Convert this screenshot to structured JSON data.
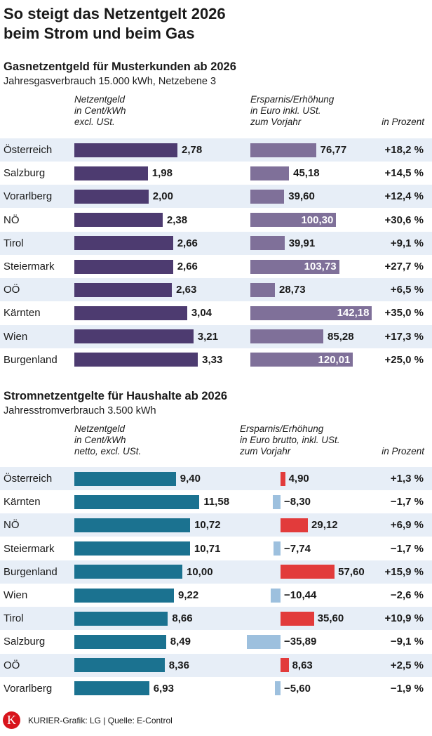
{
  "title": "So steigt das Netzentgelt 2026\nbeim Strom und beim Gas",
  "colors": {
    "gas_main": "#4d3b70",
    "gas_change": "#7f7099",
    "strom_main": "#1b7290",
    "increase": "#e23b3b",
    "decrease": "#9dc0de",
    "band": "#e7eef7"
  },
  "chart_data": [
    {
      "type": "bar",
      "title": "Gasnetzentgeld für Musterkunden ab 2026",
      "subtitle": "Jahresgasverbrauch 15.000 kWh, Netzebene 3",
      "headers": {
        "main": "Netzentgeld\nin Cent/kWh\nexcl. USt.",
        "change": "Ersparnis/Erhöhung\nin Euro inkl. USt.\nzum Vorjahr",
        "percent": "in Prozent"
      },
      "categories": [
        "Österreich",
        "Salzburg",
        "Vorarlberg",
        "NÖ",
        "Tirol",
        "Steiermark",
        "OÖ",
        "Kärnten",
        "Wien",
        "Burgenland"
      ],
      "values": [
        2.78,
        1.98,
        2.0,
        2.38,
        2.66,
        2.66,
        2.63,
        3.04,
        3.21,
        3.33
      ],
      "value_labels": [
        "2,78",
        "1,98",
        "2,00",
        "2,38",
        "2,66",
        "2,66",
        "2,63",
        "3,04",
        "3,21",
        "3,33"
      ],
      "change": [
        76.77,
        45.18,
        39.6,
        100.3,
        39.91,
        103.73,
        28.73,
        142.18,
        85.28,
        120.01
      ],
      "change_labels": [
        "76,77",
        "45,18",
        "39,60",
        "100,30",
        "39,91",
        "103,73",
        "28,73",
        "142,18",
        "85,28",
        "120,01"
      ],
      "percent": [
        "+18,2 %",
        "+14,5 %",
        "+12,4 %",
        "+30,6 %",
        "+9,1 %",
        "+27,7 %",
        "+6,5 %",
        "+35,0 %",
        "+17,3 %",
        "+25,0 %"
      ]
    },
    {
      "type": "bar",
      "title": "Stromnetzentgelte für Haushalte ab 2026",
      "subtitle": "Jahresstromverbrauch 3.500 kWh",
      "headers": {
        "main": "Netzentgeld\nin Cent/kWh\nnetto, excl. USt.",
        "change": "Ersparnis/Erhöhung\nin Euro brutto, inkl. USt.\nzum Vorjahr",
        "percent": "in Prozent"
      },
      "categories": [
        "Österreich",
        "Kärnten",
        "NÖ",
        "Steiermark",
        "Burgenland",
        "Wien",
        "Tirol",
        "Salzburg",
        "OÖ",
        "Vorarlberg"
      ],
      "values": [
        9.4,
        11.58,
        10.72,
        10.71,
        10.0,
        9.22,
        8.66,
        8.49,
        8.36,
        6.93
      ],
      "value_labels": [
        "9,40",
        "11,58",
        "10,72",
        "10,71",
        "10,00",
        "9,22",
        "8,66",
        "8,49",
        "8,36",
        "6,93"
      ],
      "change": [
        4.9,
        -8.3,
        29.12,
        -7.74,
        57.6,
        -10.44,
        35.6,
        -35.89,
        8.63,
        -5.6
      ],
      "change_labels": [
        "4,90",
        "−8,30",
        "29,12",
        "−7,74",
        "57,60",
        "−10,44",
        "35,60",
        "−35,89",
        "8,63",
        "−5,60"
      ],
      "percent": [
        "+1,3 %",
        "−1,7 %",
        "+6,9 %",
        "−1,7 %",
        "+15,9 %",
        "−2,6 %",
        "+10,9 %",
        "−9,1 %",
        "+2,5 %",
        "−1,9 %"
      ]
    }
  ],
  "footer": {
    "logo": "K",
    "source": "KURIER-Grafik: LG | Quelle: E-Control"
  }
}
